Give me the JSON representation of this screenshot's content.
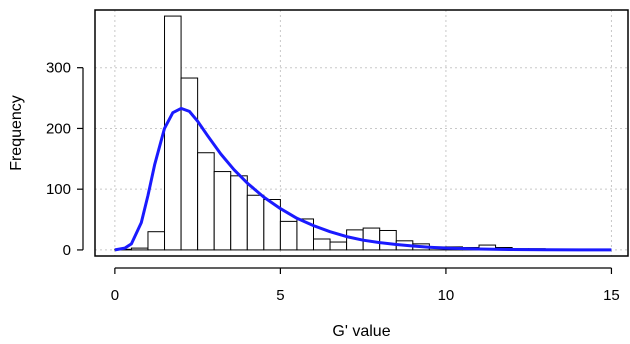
{
  "chart_data": {
    "type": "bar",
    "xlabel": "G' value",
    "ylabel": "Frequency",
    "xlim": [
      -0.6,
      15.5
    ],
    "ylim": [
      -10,
      395
    ],
    "x_ticks": [
      0,
      5,
      10,
      15
    ],
    "y_ticks": [
      0,
      100,
      200,
      300
    ],
    "grid": true,
    "bin_width": 0.5,
    "histogram": {
      "bin_starts": [
        0,
        0.5,
        1,
        1.5,
        2,
        2.5,
        3,
        3.5,
        4,
        4.5,
        5,
        5.5,
        6,
        6.5,
        7,
        7.5,
        8,
        8.5,
        9,
        9.5,
        10,
        10.5,
        11,
        11.5,
        12,
        12.5,
        13
      ],
      "values": [
        1,
        3,
        30,
        385,
        283,
        160,
        129,
        122,
        90,
        83,
        47,
        51,
        18,
        13,
        33,
        36,
        32,
        15,
        10,
        5,
        5,
        4,
        8,
        4,
        2,
        2,
        1
      ]
    },
    "density_curve": {
      "x": [
        0,
        0.3,
        0.5,
        0.8,
        1.0,
        1.2,
        1.5,
        1.75,
        2.0,
        2.25,
        2.5,
        2.8,
        3.2,
        3.6,
        4.0,
        4.5,
        5.0,
        5.5,
        6.0,
        6.5,
        7.0,
        7.5,
        8.0,
        8.5,
        9.0,
        9.5,
        10.0,
        11.0,
        12.0,
        13.0,
        14.0,
        15.0
      ],
      "y": [
        0,
        3,
        10,
        45,
        90,
        140,
        200,
        226,
        233,
        228,
        212,
        188,
        158,
        132,
        110,
        87,
        68,
        52,
        40,
        30,
        22,
        16,
        12,
        9,
        6.5,
        4.5,
        3,
        1.5,
        0.7,
        0.3,
        0.1,
        0
      ],
      "color": "#1a1aff"
    },
    "bar_fill": "#ffffff",
    "bar_stroke": "#000000",
    "grid_color": "#c8c8c8"
  }
}
